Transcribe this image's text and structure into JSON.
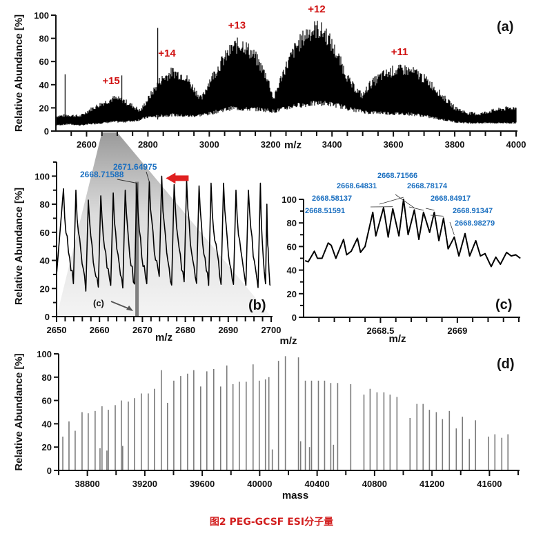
{
  "caption": "图2   PEG-GCSF ESI分子量",
  "chart_data": [
    {
      "id": "a",
      "type": "line",
      "panel_label": "(a)",
      "title": "",
      "xlabel": "m/z",
      "ylabel": "Relative Abundance [%]",
      "xlim": [
        2500,
        4000
      ],
      "ylim": [
        0,
        100
      ],
      "xticks": [
        2600,
        2800,
        3000,
        3200,
        3400,
        3600,
        3800,
        4000
      ],
      "yticks": [
        0,
        20,
        40,
        60,
        80,
        100
      ],
      "envelope": {
        "x": [
          2500,
          2540,
          2580,
          2610,
          2650,
          2690,
          2720,
          2760,
          2775,
          2800,
          2840,
          2880,
          2920,
          2950,
          2975,
          3000,
          3040,
          3080,
          3110,
          3150,
          3190,
          3210,
          3240,
          3280,
          3320,
          3350,
          3380,
          3420,
          3460,
          3500,
          3520,
          3560,
          3600,
          3640,
          3680,
          3720,
          3760,
          3800,
          3840,
          3880,
          3920,
          3960,
          4000
        ],
        "upper": [
          14,
          15,
          14,
          20,
          26,
          31,
          29,
          22,
          19,
          30,
          48,
          56,
          52,
          40,
          30,
          47,
          65,
          80,
          82,
          70,
          50,
          30,
          55,
          78,
          93,
          97,
          92,
          70,
          45,
          33,
          43,
          52,
          57,
          58,
          54,
          45,
          33,
          22,
          17,
          16,
          19,
          21,
          22
        ],
        "lower": [
          5,
          6,
          5,
          6,
          7,
          8,
          8,
          9,
          10,
          12,
          13,
          14,
          13,
          13,
          14,
          15,
          18,
          20,
          19,
          19,
          18,
          17,
          19,
          22,
          23,
          24,
          24,
          22,
          19,
          17,
          16,
          16,
          15,
          15,
          14,
          12,
          10,
          8,
          7,
          7,
          7,
          7,
          7
        ]
      },
      "spikes": [
        {
          "x": 2530,
          "y": 49
        },
        {
          "x": 2715,
          "y": 48
        },
        {
          "x": 2832,
          "y": 89
        }
      ],
      "annotations": [
        {
          "text": "+15",
          "x": 2680,
          "y": 38
        },
        {
          "text": "+14",
          "x": 2862,
          "y": 62
        },
        {
          "text": "+13",
          "x": 3090,
          "y": 86
        },
        {
          "text": "+12",
          "x": 3350,
          "y": 100
        },
        {
          "text": "+11",
          "x": 3620,
          "y": 63
        }
      ],
      "zoom_region": [
        2650,
        2700
      ]
    },
    {
      "id": "b",
      "type": "line",
      "panel_label": "(b)",
      "xlabel": "m/z",
      "ylabel": "Relative Abundance [%]",
      "xlim": [
        2650,
        2700
      ],
      "ylim": [
        0,
        110
      ],
      "xticks": [
        2650,
        2660,
        2670,
        2680,
        2690,
        2700
      ],
      "yticks": [
        0,
        20,
        40,
        60,
        80,
        100
      ],
      "peaks": {
        "x": [
          2651.6,
          2654.5,
          2657.4,
          2660.3,
          2663.2,
          2666.0,
          2668.7,
          2671.6,
          2674.5,
          2677.4,
          2680.3,
          2683.2,
          2686.0,
          2688.9,
          2691.8,
          2694.7,
          2697.5,
          2699.0
        ],
        "y": [
          91,
          90,
          83,
          86,
          88,
          90,
          95,
          96,
          100,
          94,
          97,
          93,
          95,
          95,
          90,
          90,
          95,
          80
        ]
      },
      "valleys": [
        24,
        22,
        20,
        22,
        23,
        22,
        21,
        25,
        23,
        24,
        22,
        24,
        25,
        21,
        22,
        24,
        24
      ],
      "peak_labels": [
        {
          "text": "2668.71588",
          "x": 2668.7,
          "y": 95
        },
        {
          "text": "2671.64975",
          "x": 2671.6,
          "y": 96
        }
      ],
      "highlight_band": [
        2668.5,
        2669.0
      ],
      "highlight_label": "(c)",
      "arrow_color": "#e02020",
      "arrow_target": {
        "x": 2674.5,
        "y": 100
      }
    },
    {
      "id": "c",
      "type": "line",
      "panel_label": "(c)",
      "xlabel": "m/z",
      "ylabel": "",
      "xlim": [
        2668.0,
        2669.4
      ],
      "ylim": [
        0,
        100
      ],
      "xticks": [
        2668.5,
        2669.0
      ],
      "yticks": [
        0,
        20,
        40,
        60,
        80,
        100
      ],
      "x": [
        2668.01,
        2668.03,
        2668.07,
        2668.09,
        2668.12,
        2668.16,
        2668.18,
        2668.21,
        2668.26,
        2668.28,
        2668.31,
        2668.35,
        2668.37,
        2668.4,
        2668.45,
        2668.47,
        2668.52,
        2668.55,
        2668.58,
        2668.62,
        2668.65,
        2668.68,
        2668.72,
        2668.75,
        2668.78,
        2668.82,
        2668.85,
        2668.88,
        2668.91,
        2668.94,
        2668.98,
        2669.01,
        2669.05,
        2669.08,
        2669.12,
        2669.15,
        2669.18,
        2669.22,
        2669.25,
        2669.28,
        2669.32,
        2669.35,
        2669.38,
        2669.41
      ],
      "y": [
        48,
        47,
        56,
        50,
        50,
        63,
        61,
        50,
        66,
        53,
        56,
        67,
        55,
        60,
        89,
        69,
        93,
        68,
        92,
        69,
        100,
        70,
        91,
        66,
        89,
        72,
        89,
        65,
        84,
        58,
        68,
        52,
        71,
        52,
        65,
        52,
        54,
        43,
        51,
        45,
        55,
        52,
        53,
        50
      ],
      "peak_labels": [
        {
          "text": "2668.51591",
          "x": 2668.52
        },
        {
          "text": "2668.58137",
          "x": 2668.58
        },
        {
          "text": "2668.64831",
          "x": 2668.65
        },
        {
          "text": "2668.71566",
          "x": 2668.72
        },
        {
          "text": "2668.78174",
          "x": 2668.78
        },
        {
          "text": "2668.84917",
          "x": 2668.85
        },
        {
          "text": "2668.91347",
          "x": 2668.91
        },
        {
          "text": "2668.98279",
          "x": 2668.98
        }
      ]
    },
    {
      "id": "d",
      "type": "bar",
      "panel_label": "(d)",
      "xlabel": "mass",
      "ylabel": "Relative Abundance [%]",
      "xlim": [
        38600,
        41800
      ],
      "ylim": [
        0,
        100
      ],
      "xticks": [
        38800,
        39200,
        39600,
        40000,
        40400,
        40800,
        41200,
        41600
      ],
      "yticks": [
        0,
        20,
        40,
        60,
        80,
        100
      ],
      "top_label": "m/z",
      "masses": [
        38629,
        38672,
        38715,
        38763,
        38806,
        38854,
        38888,
        38902,
        38936,
        38946,
        38994,
        39037,
        39046,
        39085,
        39128,
        39176,
        39224,
        39267,
        39315,
        39358,
        39402,
        39450,
        39498,
        39541,
        39589,
        39632,
        39680,
        39728,
        39771,
        39814,
        39858,
        39906,
        39954,
        39997,
        40040,
        40064,
        40088,
        40131,
        40179,
        40270,
        40285,
        40318,
        40347,
        40361,
        40409,
        40452,
        40495,
        40514,
        40543,
        40634,
        40726,
        40769,
        40817,
        40865,
        40908,
        40956,
        41047,
        41095,
        41138,
        41182,
        41230,
        41273,
        41321,
        41369,
        41412,
        41460,
        41503,
        41594,
        41638,
        41686,
        41729
      ],
      "abundances": [
        29,
        42,
        34,
        50,
        49,
        51,
        19,
        55,
        17,
        52,
        56,
        60,
        21,
        59,
        62,
        66,
        66,
        70,
        86,
        58,
        77,
        81,
        83,
        86,
        72,
        85,
        87,
        72,
        90,
        74,
        76,
        76,
        91,
        77,
        78,
        80,
        18,
        94,
        98,
        97,
        25,
        77,
        20,
        77,
        77,
        77,
        75,
        22,
        75,
        74,
        65,
        70,
        67,
        67,
        65,
        63,
        45,
        57,
        57,
        52,
        50,
        44,
        51,
        36,
        46,
        27,
        43,
        29,
        31,
        28,
        31
      ]
    }
  ]
}
